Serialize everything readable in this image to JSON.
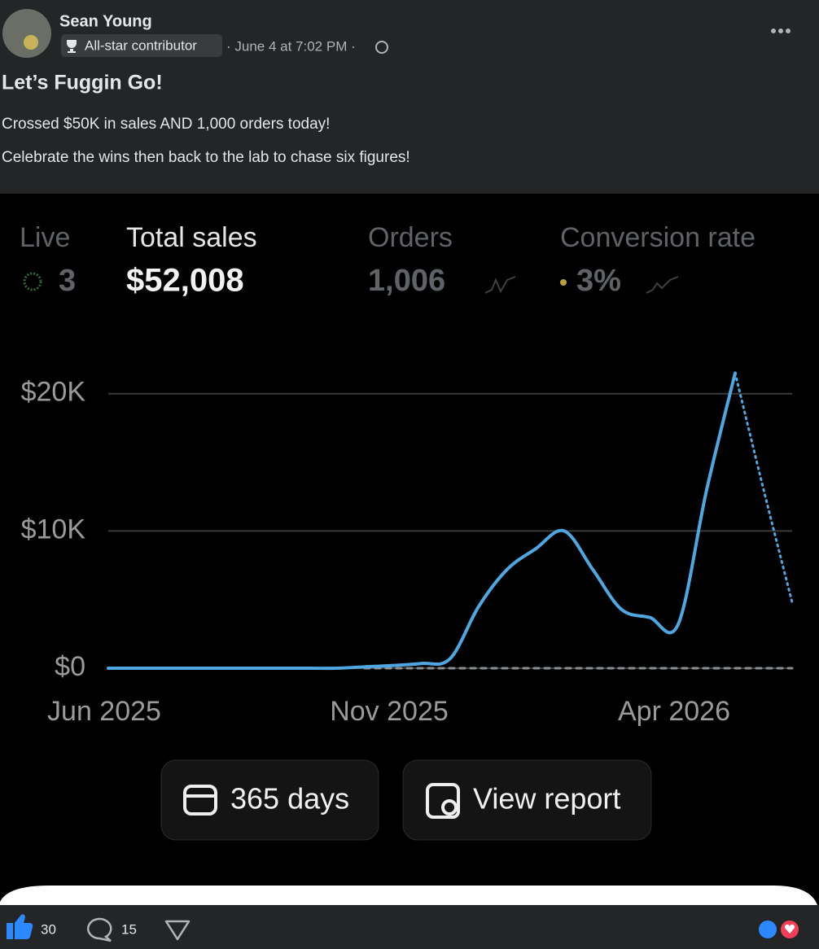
{
  "post": {
    "author": "Sean Young",
    "badge": "All-star contributor",
    "timestamp": "· June 4 at 7:02 PM ·",
    "title": "Let’s Fuggin Go!",
    "body": [
      "Crossed $50K in sales AND 1,000 orders today!",
      "Celebrate the wins then back to the lab to chase six figures!"
    ]
  },
  "metrics": [
    {
      "label": "Live",
      "value": "3"
    },
    {
      "label": "Total sales",
      "value": "$52,008"
    },
    {
      "label": "Orders",
      "value": "1,006"
    },
    {
      "label": "Conversion rate",
      "value": "3%"
    }
  ],
  "chart_data": {
    "type": "line",
    "categories": [
      "Jun 2025",
      null,
      null,
      null,
      null,
      null,
      null,
      null,
      null,
      null,
      "Nov 2025",
      null,
      null,
      null,
      null,
      null,
      null,
      null,
      null,
      null,
      "Apr 2026",
      null,
      null,
      null,
      null
    ],
    "series": [
      {
        "color": "#4fa7e2",
        "style": "solid",
        "values": [
          0,
          0,
          0,
          0,
          0,
          0,
          0,
          0,
          0,
          100,
          200,
          350,
          700,
          4500,
          7200,
          8700,
          10000,
          7200,
          4300,
          3700,
          3200,
          13000,
          21500,
          null,
          null
        ]
      },
      {
        "color": "#4fa7e2",
        "style": "dotted",
        "values": [
          null,
          null,
          null,
          null,
          null,
          null,
          null,
          null,
          null,
          null,
          null,
          null,
          null,
          null,
          null,
          null,
          null,
          null,
          null,
          null,
          null,
          null,
          21500,
          13000,
          4800
        ]
      },
      {
        "color": "#8a8f94",
        "style": "dashed",
        "values": [
          null,
          null,
          null,
          null,
          null,
          null,
          null,
          null,
          null,
          0,
          0,
          0,
          0,
          0,
          0,
          0,
          0,
          0,
          0,
          0,
          0,
          0,
          0,
          0,
          0
        ]
      }
    ],
    "ylim": [
      0,
      22000
    ],
    "yticks": [
      {
        "value": 0,
        "label": "$0"
      },
      {
        "value": 10000,
        "label": "$10K"
      },
      {
        "value": 20000,
        "label": "$20K"
      }
    ],
    "grid": true
  },
  "buttons": [
    "365 days",
    "View report"
  ],
  "footer": {
    "likes": "30",
    "comments": "15"
  }
}
